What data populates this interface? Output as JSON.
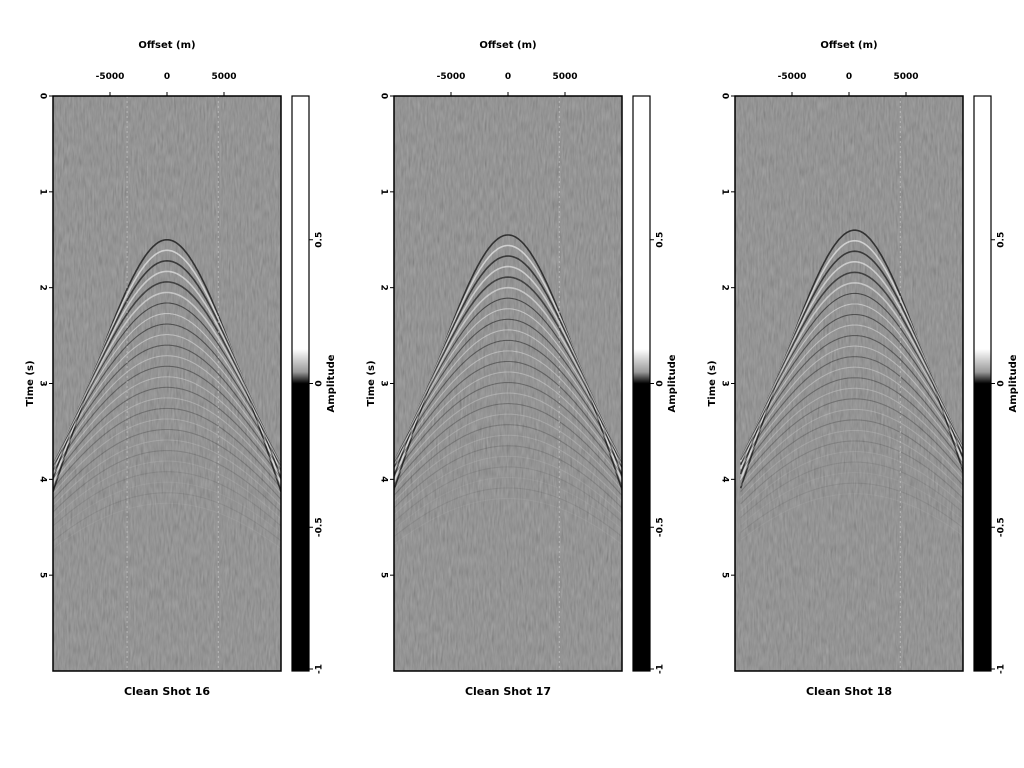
{
  "chart_data": [
    {
      "type": "heatmap",
      "title": "Clean Shot 16",
      "xlabel": "Offset (m)",
      "ylabel": "Time (s)",
      "colorbar_label": "Amplitude",
      "colormap": "gray",
      "xlim": [
        -10000,
        10000
      ],
      "ylim": [
        0,
        6
      ],
      "xticks": [
        "-5000",
        "0",
        "5000"
      ],
      "yticks": [
        "0",
        "1",
        "2",
        "3",
        "4",
        "5"
      ],
      "colorbar_range": [
        -1,
        1
      ],
      "colorbar_ticks": [
        "-1",
        "-0.5",
        "0",
        "0.5"
      ],
      "event_apex": {
        "offset": 0,
        "time": 1.5
      },
      "trace_lines": [
        -3500,
        4500
      ]
    },
    {
      "type": "heatmap",
      "title": "Clean Shot 17",
      "xlabel": "Offset (m)",
      "ylabel": "Time (s)",
      "colorbar_label": "Amplitude",
      "colormap": "gray",
      "xlim": [
        -10000,
        10000
      ],
      "ylim": [
        0,
        6
      ],
      "xticks": [
        "-5000",
        "0",
        "5000"
      ],
      "yticks": [
        "0",
        "1",
        "2",
        "3",
        "4",
        "5"
      ],
      "colorbar_range": [
        -1,
        1
      ],
      "colorbar_ticks": [
        "-1",
        "-0.5",
        "0",
        "0.5"
      ],
      "event_apex": {
        "offset": 0,
        "time": 1.45
      },
      "trace_lines": [
        4500
      ]
    },
    {
      "type": "heatmap",
      "title": "Clean Shot 18",
      "xlabel": "Offset (m)",
      "ylabel": "Time (s)",
      "colorbar_label": "Amplitude",
      "colormap": "gray",
      "xlim": [
        -10000,
        10000
      ],
      "ylim": [
        0,
        6
      ],
      "xticks": [
        "-5000",
        "0",
        "5000"
      ],
      "yticks": [
        "0",
        "1",
        "2",
        "3",
        "4",
        "5"
      ],
      "colorbar_range": [
        -1,
        1
      ],
      "colorbar_ticks": [
        "-1",
        "-0.5",
        "0",
        "0.5"
      ],
      "event_apex": {
        "offset": 500,
        "time": 1.4
      },
      "trace_lines": [
        4500
      ]
    }
  ]
}
